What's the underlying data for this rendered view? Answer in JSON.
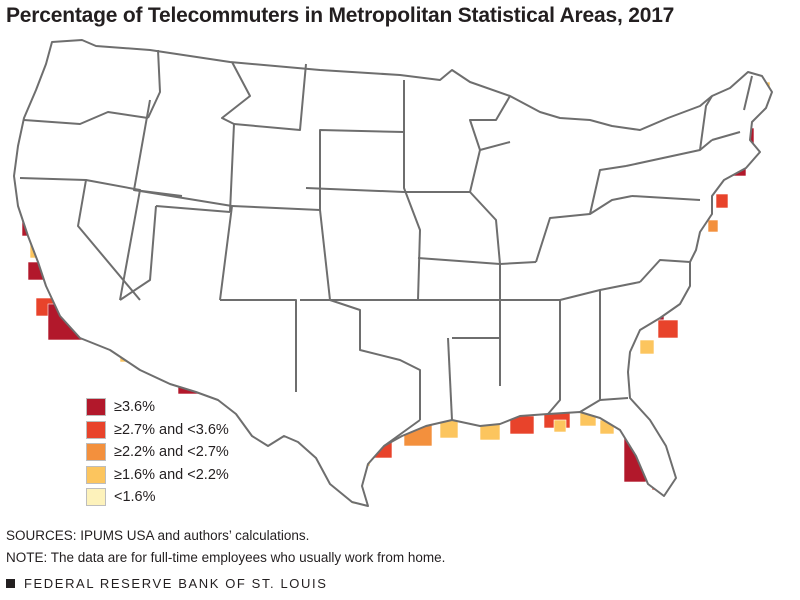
{
  "title": "Percentage of Telecommuters in Metropolitan Statistical Areas, 2017",
  "legend": [
    {
      "label": "≥3.6%",
      "color": "#b2182b"
    },
    {
      "label": "≥2.7% and <3.6%",
      "color": "#e8432b"
    },
    {
      "label": "≥2.2% and <2.7%",
      "color": "#f3903d"
    },
    {
      "label": "≥1.6% and <2.2%",
      "color": "#fcc55e"
    },
    {
      "label": "<1.6%",
      "color": "#fdf2bb"
    }
  ],
  "sources": "SOURCES: IPUMS USA and authors’ calculations.",
  "note": "NOTE: The data are for full-time employees who usually work from home.",
  "footer": "FEDERAL RESERVE BANK OF ST. LOUIS",
  "colors": {
    "border": "#6e6e6e",
    "land": "#ffffff",
    "text": "#231f20"
  }
}
